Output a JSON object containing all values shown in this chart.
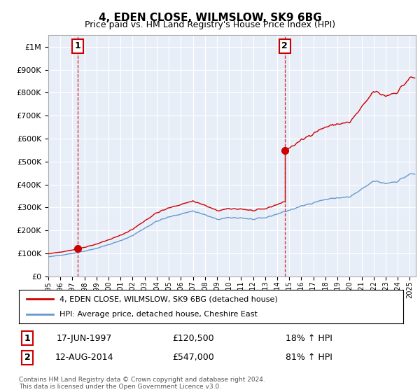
{
  "title": "4, EDEN CLOSE, WILMSLOW, SK9 6BG",
  "subtitle": "Price paid vs. HM Land Registry's House Price Index (HPI)",
  "legend_line1": "4, EDEN CLOSE, WILMSLOW, SK9 6BG (detached house)",
  "legend_line2": "HPI: Average price, detached house, Cheshire East",
  "transaction1_date": 1997.46,
  "transaction1_price": 120500,
  "transaction1_label": "1",
  "transaction1_display": "17-JUN-1997",
  "transaction1_pct": "18% ↑ HPI",
  "transaction2_date": 2014.62,
  "transaction2_price": 547000,
  "transaction2_label": "2",
  "transaction2_display": "12-AUG-2014",
  "transaction2_pct": "81% ↑ HPI",
  "footnote1": "Contains HM Land Registry data © Crown copyright and database right 2024.",
  "footnote2": "This data is licensed under the Open Government Licence v3.0.",
  "xmin": 1995.0,
  "xmax": 2025.5,
  "ymin": 0,
  "ymax": 1050000,
  "property_color": "#cc0000",
  "hpi_color": "#6699cc",
  "plot_bg": "#e8eef8"
}
